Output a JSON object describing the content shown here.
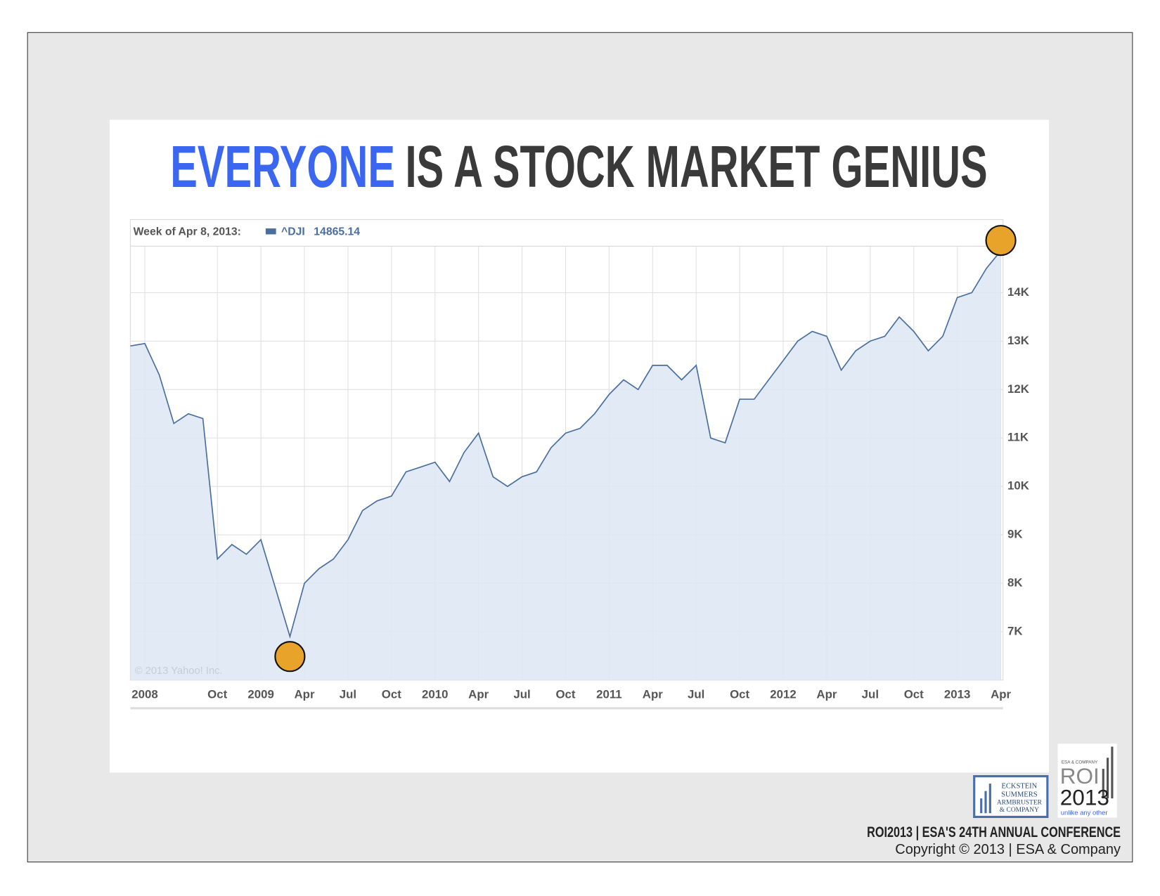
{
  "title_highlight": "EVERYONE",
  "title": "IS A STOCK MARKET GENIUS",
  "chart_data": {
    "type": "area",
    "legend_label": "Week of Apr 8, 2013:",
    "x": [
      "2008-04",
      "2008-05",
      "2008-06",
      "2008-07",
      "2008-08",
      "2008-09",
      "2008-10",
      "2008-11",
      "2008-12",
      "2009-01",
      "2009-02",
      "2009-03",
      "2009-04",
      "2009-05",
      "2009-06",
      "2009-07",
      "2009-08",
      "2009-09",
      "2009-10",
      "2009-11",
      "2009-12",
      "2010-01",
      "2010-02",
      "2010-03",
      "2010-04",
      "2010-05",
      "2010-06",
      "2010-07",
      "2010-08",
      "2010-09",
      "2010-10",
      "2010-11",
      "2010-12",
      "2011-01",
      "2011-02",
      "2011-03",
      "2011-04",
      "2011-05",
      "2011-06",
      "2011-07",
      "2011-08",
      "2011-09",
      "2011-10",
      "2011-11",
      "2011-12",
      "2012-01",
      "2012-02",
      "2012-03",
      "2012-04",
      "2012-05",
      "2012-06",
      "2012-07",
      "2012-08",
      "2012-09",
      "2012-10",
      "2012-11",
      "2012-12",
      "2013-01",
      "2013-02",
      "2013-03",
      "2013-04"
    ],
    "series": [
      {
        "name": "^DJI",
        "color": "#4a6f9f",
        "values": [
          12900,
          12950,
          12300,
          11300,
          11500,
          11400,
          8500,
          8800,
          8600,
          8900,
          7900,
          6900,
          8000,
          8300,
          8500,
          8900,
          9500,
          9700,
          9800,
          10300,
          10400,
          10500,
          10100,
          10700,
          11100,
          10200,
          10000,
          10200,
          10300,
          10800,
          11100,
          11200,
          11500,
          11900,
          12200,
          12000,
          12500,
          12500,
          12200,
          12500,
          11000,
          10900,
          11800,
          11800,
          12200,
          12600,
          13000,
          13200,
          13100,
          12400,
          12800,
          13000,
          13100,
          13500,
          13200,
          12800,
          13100,
          13900,
          14000,
          14500,
          14865.14
        ]
      }
    ],
    "xlim": [
      "2008-04",
      "2013-04"
    ],
    "ylim": [
      6000,
      14930
    ],
    "yticks": [
      {
        "value": 7000,
        "label": "7K"
      },
      {
        "value": 8000,
        "label": "8K"
      },
      {
        "value": 9000,
        "label": "9K"
      },
      {
        "value": 10000,
        "label": "10K"
      },
      {
        "value": 11000,
        "label": "11K"
      },
      {
        "value": 12000,
        "label": "12K"
      },
      {
        "value": 13000,
        "label": "13K"
      },
      {
        "value": 14000,
        "label": "14K"
      }
    ],
    "xticks": [
      {
        "value": "2008-05",
        "label": "2008"
      },
      {
        "value": "2008-10",
        "label": "Oct"
      },
      {
        "value": "2009-01",
        "label": "2009"
      },
      {
        "value": "2009-04",
        "label": "Apr"
      },
      {
        "value": "2009-07",
        "label": "Jul"
      },
      {
        "value": "2009-10",
        "label": "Oct"
      },
      {
        "value": "2010-01",
        "label": "2010"
      },
      {
        "value": "2010-04",
        "label": "Apr"
      },
      {
        "value": "2010-07",
        "label": "Jul"
      },
      {
        "value": "2010-10",
        "label": "Oct"
      },
      {
        "value": "2011-01",
        "label": "2011"
      },
      {
        "value": "2011-04",
        "label": "Apr"
      },
      {
        "value": "2011-07",
        "label": "Jul"
      },
      {
        "value": "2011-10",
        "label": "Oct"
      },
      {
        "value": "2012-01",
        "label": "2012"
      },
      {
        "value": "2012-04",
        "label": "Apr"
      },
      {
        "value": "2012-07",
        "label": "Jul"
      },
      {
        "value": "2012-10",
        "label": "Oct"
      },
      {
        "value": "2013-01",
        "label": "2013"
      },
      {
        "value": "2013-04",
        "label": "Apr"
      }
    ],
    "grid": true,
    "fill_color": "#dde8f3",
    "watermark": "© 2013 Yahoo! Inc.",
    "highlight_points": [
      11,
      60
    ],
    "highlight_color": "#e8a42a"
  },
  "footer": {
    "company_logo": [
      "ECKSTEIN",
      "SUMMERS",
      "ARMBRUSTER",
      "& COMPANY"
    ],
    "roi_logo": {
      "top": "ESA & COMPANY",
      "roi": "ROI",
      "year": "2013",
      "tagline": "unlike any other"
    },
    "conference": "ROI2013 | ESA'S 24TH ANNUAL CONFERENCE",
    "copyright": "Copyright © 2013 | ESA & Company"
  }
}
